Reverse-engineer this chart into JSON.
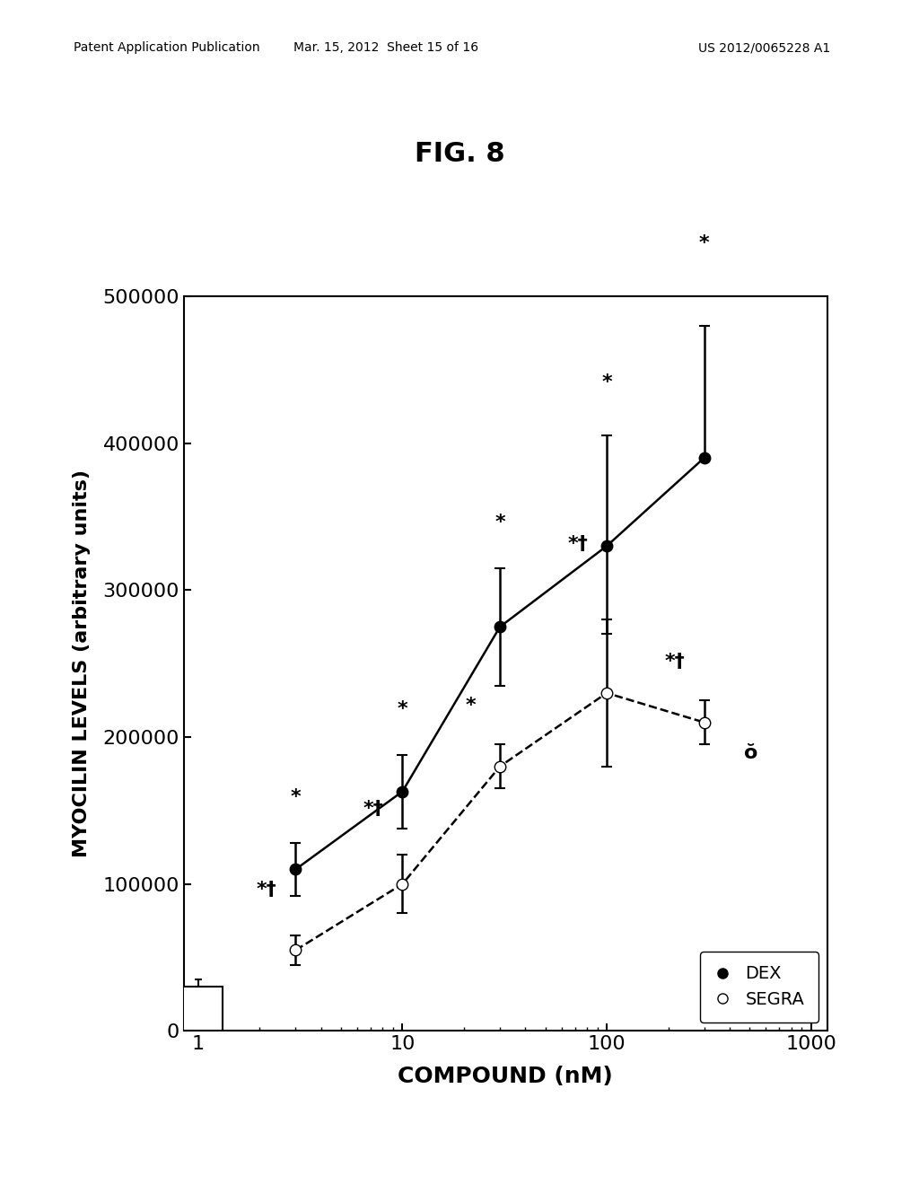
{
  "title": "FIG. 8",
  "xlabel": "COMPOUND (nM)",
  "ylabel": "MYOCILIN LEVELS (arbitrary units)",
  "dex_x": [
    3,
    10,
    30,
    100,
    300
  ],
  "dex_y": [
    110000,
    163000,
    275000,
    330000,
    390000
  ],
  "dex_yerr_low": [
    18000,
    25000,
    40000,
    60000,
    0
  ],
  "dex_yerr_high": [
    18000,
    25000,
    40000,
    75000,
    90000
  ],
  "segra_x": [
    3,
    10,
    30,
    100,
    300
  ],
  "segra_y": [
    55000,
    100000,
    180000,
    230000,
    210000
  ],
  "segra_yerr_low": [
    10000,
    20000,
    15000,
    50000,
    15000
  ],
  "segra_yerr_high": [
    10000,
    20000,
    15000,
    50000,
    15000
  ],
  "bar_x": 1.0,
  "bar_y": 30000,
  "bar_yerr": 5000,
  "ylim": [
    0,
    500000
  ],
  "yticks": [
    0,
    100000,
    200000,
    300000,
    400000,
    500000
  ],
  "xlim_log": [
    0.85,
    1200
  ],
  "background_color": "#ffffff",
  "line_color": "#000000",
  "dex_annotations": [
    "*",
    "*",
    "*",
    "*",
    "*"
  ],
  "segra_annotations": [
    "*†",
    "*†",
    "*",
    "*†",
    "*†"
  ],
  "dex_ann_offset_y": [
    25000,
    25000,
    25000,
    30000,
    50000
  ],
  "segra_ann_offset_y": [
    25000,
    25000,
    20000,
    45000,
    20000
  ],
  "last_segra_label": "ŏ",
  "legend_dex": "DEX",
  "legend_segra": "SEGRA",
  "header_left": "Patent Application Publication",
  "header_mid": "Mar. 15, 2012  Sheet 15 of 16",
  "header_right": "US 2012/0065228 A1"
}
